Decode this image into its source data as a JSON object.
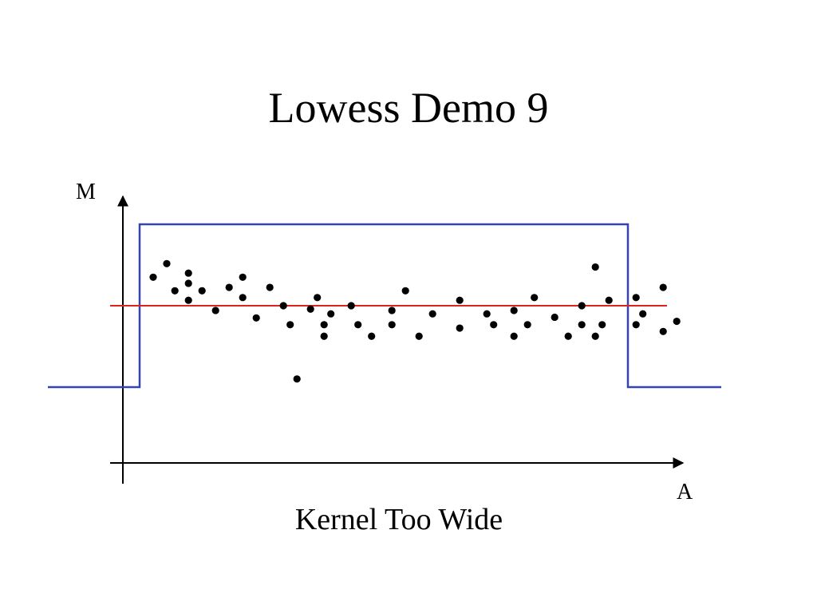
{
  "slide": {
    "title": "Lowess Demo 9",
    "caption": "Kernel Too Wide"
  },
  "axes": {
    "y_label": "M",
    "x_label": "A"
  },
  "colors": {
    "kernel_window": "#3344aa",
    "fit_line": "#dd2222",
    "points": "#000000",
    "axes": "#000000"
  },
  "data_points": [
    [
      1.0,
      8.2
    ],
    [
      2.0,
      10.2
    ],
    [
      2.6,
      6.2
    ],
    [
      3.6,
      8.8
    ],
    [
      3.6,
      7.3
    ],
    [
      3.6,
      4.8
    ],
    [
      4.6,
      6.2
    ],
    [
      5.6,
      3.3
    ],
    [
      6.6,
      6.7
    ],
    [
      7.6,
      8.2
    ],
    [
      7.6,
      5.2
    ],
    [
      8.6,
      2.2
    ],
    [
      9.6,
      6.7
    ],
    [
      10.6,
      4.0
    ],
    [
      11.1,
      1.2
    ],
    [
      11.6,
      -6.8
    ],
    [
      12.6,
      3.5
    ],
    [
      13.1,
      5.2
    ],
    [
      13.6,
      1.2
    ],
    [
      13.6,
      -0.5
    ],
    [
      14.1,
      2.8
    ],
    [
      15.6,
      4.0
    ],
    [
      16.1,
      1.2
    ],
    [
      17.1,
      -0.5
    ],
    [
      18.6,
      3.3
    ],
    [
      18.6,
      1.2
    ],
    [
      19.6,
      6.2
    ],
    [
      20.6,
      -0.5
    ],
    [
      21.6,
      2.8
    ],
    [
      23.6,
      4.8
    ],
    [
      23.6,
      0.7
    ],
    [
      25.6,
      2.8
    ],
    [
      26.1,
      1.2
    ],
    [
      27.6,
      3.3
    ],
    [
      27.6,
      -0.5
    ],
    [
      28.6,
      1.2
    ],
    [
      29.1,
      5.2
    ],
    [
      30.6,
      2.3
    ],
    [
      31.6,
      -0.5
    ],
    [
      32.6,
      4.0
    ],
    [
      32.6,
      1.2
    ],
    [
      33.6,
      9.7
    ],
    [
      33.6,
      -0.5
    ],
    [
      34.1,
      1.2
    ],
    [
      34.6,
      4.8
    ],
    [
      36.6,
      1.2
    ],
    [
      36.6,
      5.2
    ],
    [
      37.1,
      2.8
    ],
    [
      38.6,
      6.7
    ],
    [
      38.6,
      0.2
    ],
    [
      39.6,
      1.7
    ]
  ],
  "fit_level": 4.0,
  "window": {
    "x_start": 0.0,
    "x_end": 36.0,
    "inside_level": 16.0,
    "outside_level": -8.0
  }
}
